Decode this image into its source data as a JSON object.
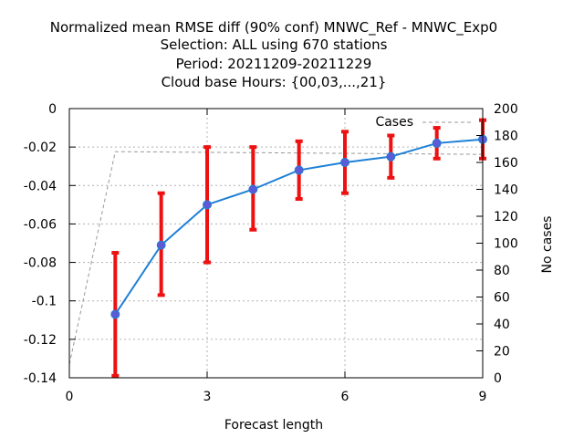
{
  "chart_data": {
    "type": "line",
    "title_lines": [
      "Normalized mean RMSE diff (90% conf) MNWC_Ref - MNWC_Exp0",
      "Selection: ALL using   670 stations",
      "Period: 20211209-20211229",
      "Cloud base   Hours: {00,03,...,21}"
    ],
    "xlabel": "Forecast length",
    "ylabel": "",
    "y2label": "No cases",
    "xlim": [
      0,
      9
    ],
    "ylim": [
      -0.14,
      0
    ],
    "y2lim": [
      0,
      200
    ],
    "x_ticks": [
      0,
      3,
      6,
      9
    ],
    "y_ticks": [
      0,
      -0.02,
      -0.04,
      -0.06,
      -0.08,
      -0.1,
      -0.12,
      -0.14
    ],
    "y_tick_labels": [
      "0",
      "-0.02",
      "-0.04",
      "-0.06",
      "-0.08",
      "-0.1",
      "-0.12",
      "-0.14"
    ],
    "y2_ticks": [
      0,
      20,
      40,
      60,
      80,
      100,
      120,
      140,
      160,
      180,
      200
    ],
    "grid": true,
    "legend_position": "top-right",
    "series": [
      {
        "name": "",
        "kind": "mean_with_ci",
        "color": "#1e7fd6",
        "marker_color": "#5b5bd6",
        "errorbar_color": "#ee1111",
        "x": [
          1,
          2,
          3,
          4,
          5,
          6,
          7,
          8,
          9
        ],
        "values": [
          -0.107,
          -0.071,
          -0.05,
          -0.042,
          -0.032,
          -0.028,
          -0.025,
          -0.018,
          -0.016
        ],
        "ci_low": [
          -0.139,
          -0.097,
          -0.08,
          -0.063,
          -0.047,
          -0.044,
          -0.036,
          -0.026,
          -0.026
        ],
        "ci_high": [
          -0.075,
          -0.044,
          -0.02,
          -0.02,
          -0.017,
          -0.012,
          -0.014,
          -0.01,
          -0.006
        ]
      },
      {
        "name": "Cases",
        "axis": "y2",
        "style": "dashed",
        "color": "#999999",
        "x": [
          0,
          1,
          9
        ],
        "values": [
          10,
          168,
          166
        ]
      }
    ]
  }
}
